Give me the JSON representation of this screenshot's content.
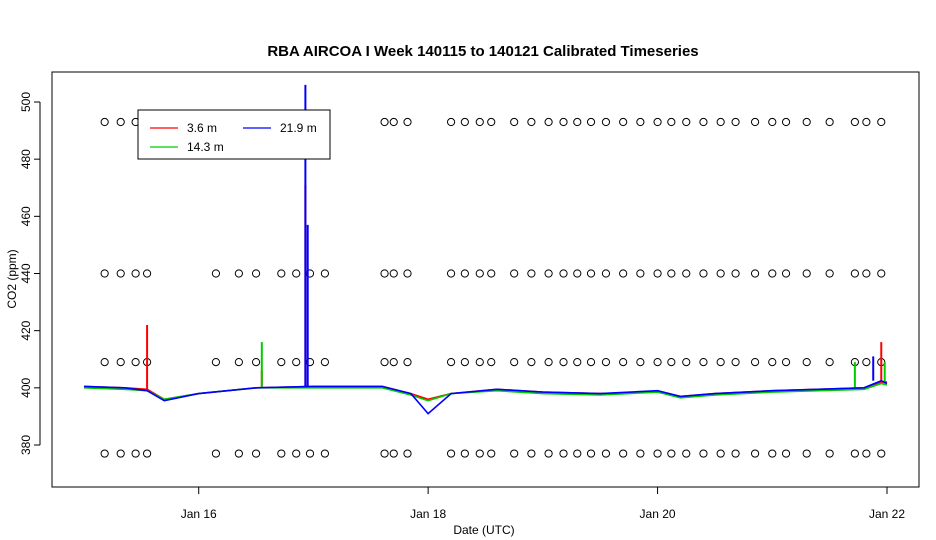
{
  "chart_data": {
    "type": "line",
    "title": "RBA AIRCOA I  Week 140115 to 140121  Calibrated Timeseries",
    "xlabel": "Date (UTC)",
    "ylabel": "CO2 (ppm)",
    "xlim": [
      15.0,
      22.1
    ],
    "ylim": [
      365,
      508
    ],
    "x_ticks": [
      16,
      18,
      20,
      22
    ],
    "x_tick_labels": [
      "Jan 16",
      "Jan 18",
      "Jan 20",
      "Jan 22"
    ],
    "y_ticks": [
      380,
      400,
      420,
      440,
      460,
      480,
      500
    ],
    "y_tick_labels": [
      "380",
      "400",
      "420",
      "440",
      "460",
      "480",
      "500"
    ],
    "grid": false,
    "legend_position": "top-left",
    "series": [
      {
        "name": "3.6 m",
        "color": "#ff0000",
        "x": [
          15.0,
          15.35,
          15.55,
          15.7,
          16.0,
          16.5,
          17.0,
          17.6,
          17.85,
          18.0,
          18.2,
          18.6,
          19.0,
          19.5,
          20.0,
          20.2,
          20.5,
          21.0,
          21.4,
          21.8,
          21.95,
          22.0
        ],
        "y": [
          400.5,
          400.0,
          399.5,
          396.0,
          398.0,
          400.0,
          400.5,
          400.5,
          398.0,
          396.0,
          398.0,
          399.5,
          398.5,
          398.0,
          398.5,
          397.0,
          398.0,
          399.0,
          399.5,
          400.0,
          402.0,
          402.0
        ],
        "spikes": [
          {
            "x": 15.55,
            "y": 422
          },
          {
            "x": 16.55,
            "y": 406
          },
          {
            "x": 16.93,
            "y": 471
          },
          {
            "x": 21.95,
            "y": 416
          }
        ]
      },
      {
        "name": "14.3 m",
        "color": "#00cc00",
        "x": [
          15.0,
          15.35,
          15.55,
          15.7,
          16.0,
          16.5,
          17.0,
          17.6,
          17.85,
          18.0,
          18.2,
          18.6,
          19.0,
          19.5,
          20.0,
          20.2,
          20.5,
          21.0,
          21.4,
          21.8,
          21.95,
          22.0
        ],
        "y": [
          400.0,
          399.5,
          399.0,
          396.0,
          398.0,
          400.0,
          400.0,
          400.0,
          397.5,
          395.5,
          398.0,
          399.0,
          398.0,
          397.5,
          398.5,
          396.5,
          397.5,
          398.5,
          399.0,
          399.5,
          401.5,
          401.0
        ],
        "spikes": [
          {
            "x": 16.55,
            "y": 416
          },
          {
            "x": 21.72,
            "y": 409
          },
          {
            "x": 21.98,
            "y": 409
          }
        ]
      },
      {
        "name": "21.9 m",
        "color": "#0000ff",
        "x": [
          15.0,
          15.35,
          15.55,
          15.7,
          16.0,
          16.5,
          17.0,
          17.6,
          17.85,
          18.0,
          18.2,
          18.6,
          19.0,
          19.5,
          20.0,
          20.2,
          20.5,
          21.0,
          21.4,
          21.8,
          21.95,
          22.0
        ],
        "y": [
          400.5,
          400.0,
          399.0,
          395.5,
          398.0,
          400.0,
          400.5,
          400.5,
          398.0,
          391.0,
          398.0,
          399.5,
          398.5,
          398.0,
          399.0,
          397.0,
          398.0,
          399.0,
          399.5,
          400.0,
          402.5,
          401.5
        ],
        "spikes": [
          {
            "x": 16.93,
            "y": 506
          },
          {
            "x": 16.95,
            "y": 457
          },
          {
            "x": 21.88,
            "y": 411
          }
        ]
      }
    ],
    "markers": {
      "symbol": "open-circle",
      "levels": [
        493,
        440,
        409,
        377
      ],
      "x": [
        15.18,
        15.32,
        15.45,
        15.55,
        16.15,
        16.35,
        16.5,
        16.72,
        16.85,
        16.97,
        17.1,
        17.62,
        17.7,
        17.82,
        18.2,
        18.32,
        18.45,
        18.55,
        18.75,
        18.9,
        19.05,
        19.18,
        19.3,
        19.42,
        19.55,
        19.7,
        19.85,
        20.0,
        20.12,
        20.25,
        20.4,
        20.55,
        20.68,
        20.85,
        21.0,
        21.12,
        21.3,
        21.5,
        21.72,
        21.82,
        21.95
      ]
    }
  }
}
